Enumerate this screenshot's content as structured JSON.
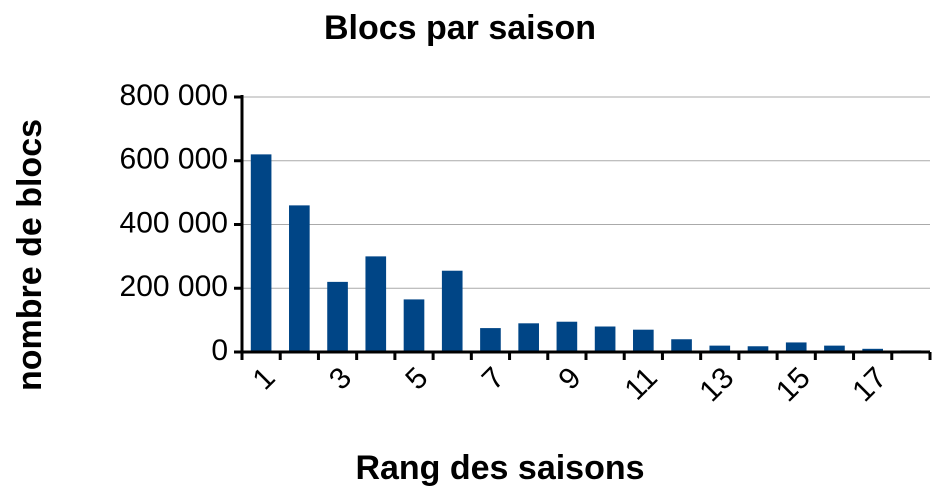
{
  "chart_data": {
    "type": "bar",
    "title": "Blocs par saison",
    "xlabel": "Rang des saisons",
    "ylabel": "nombre de blocs",
    "categories": [
      "1",
      null,
      "3",
      null,
      "5",
      null,
      "7",
      null,
      "9",
      null,
      "11",
      null,
      "13",
      null,
      "15",
      null,
      "17",
      null
    ],
    "values": [
      620000,
      460000,
      220000,
      300000,
      165000,
      255000,
      75000,
      90000,
      95000,
      80000,
      70000,
      40000,
      20000,
      18000,
      30000,
      20000,
      10000,
      5000
    ],
    "color": "#004586",
    "ylim": [
      0,
      800000
    ],
    "yticks": [
      0,
      {
        "value": 200000,
        "label": "200 000"
      },
      {
        "value": 400000,
        "label": "400 000"
      },
      {
        "value": 600000,
        "label": "600 000"
      },
      {
        "value": 800000,
        "label": "800 000"
      }
    ],
    "grid": true
  }
}
